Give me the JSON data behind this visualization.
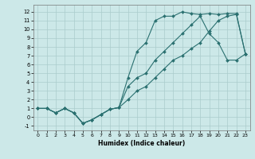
{
  "xlabel": "Humidex (Indice chaleur)",
  "xlim": [
    -0.5,
    23.5
  ],
  "ylim": [
    -1.5,
    12.8
  ],
  "xticks": [
    0,
    1,
    2,
    3,
    4,
    5,
    6,
    7,
    8,
    9,
    10,
    11,
    12,
    13,
    14,
    15,
    16,
    17,
    18,
    19,
    20,
    21,
    22,
    23
  ],
  "yticks": [
    -1,
    0,
    1,
    2,
    3,
    4,
    5,
    6,
    7,
    8,
    9,
    10,
    11,
    12
  ],
  "bg_color": "#cce8e8",
  "grid_color": "#aacccc",
  "line_color": "#2a7070",
  "line1_y": [
    1,
    1,
    0.5,
    1,
    0.5,
    -0.7,
    -0.3,
    0.3,
    0.9,
    1.1,
    4.5,
    7.5,
    8.5,
    11.0,
    11.5,
    11.5,
    12.0,
    11.8,
    11.7,
    11.8,
    11.7,
    11.8,
    11.8,
    7.2
  ],
  "line2_y": [
    1,
    1,
    0.5,
    1,
    0.5,
    -0.7,
    -0.3,
    0.3,
    0.9,
    1.1,
    3.5,
    4.5,
    5.0,
    6.5,
    7.5,
    8.5,
    9.5,
    10.5,
    11.5,
    9.5,
    8.5,
    6.5,
    6.5,
    7.2
  ],
  "line3_y": [
    1,
    1,
    0.5,
    1,
    0.5,
    -0.7,
    -0.3,
    0.3,
    0.9,
    1.1,
    2.0,
    3.0,
    3.5,
    4.5,
    5.5,
    6.5,
    7.0,
    7.8,
    8.5,
    9.8,
    11.0,
    11.5,
    11.7,
    7.2
  ]
}
